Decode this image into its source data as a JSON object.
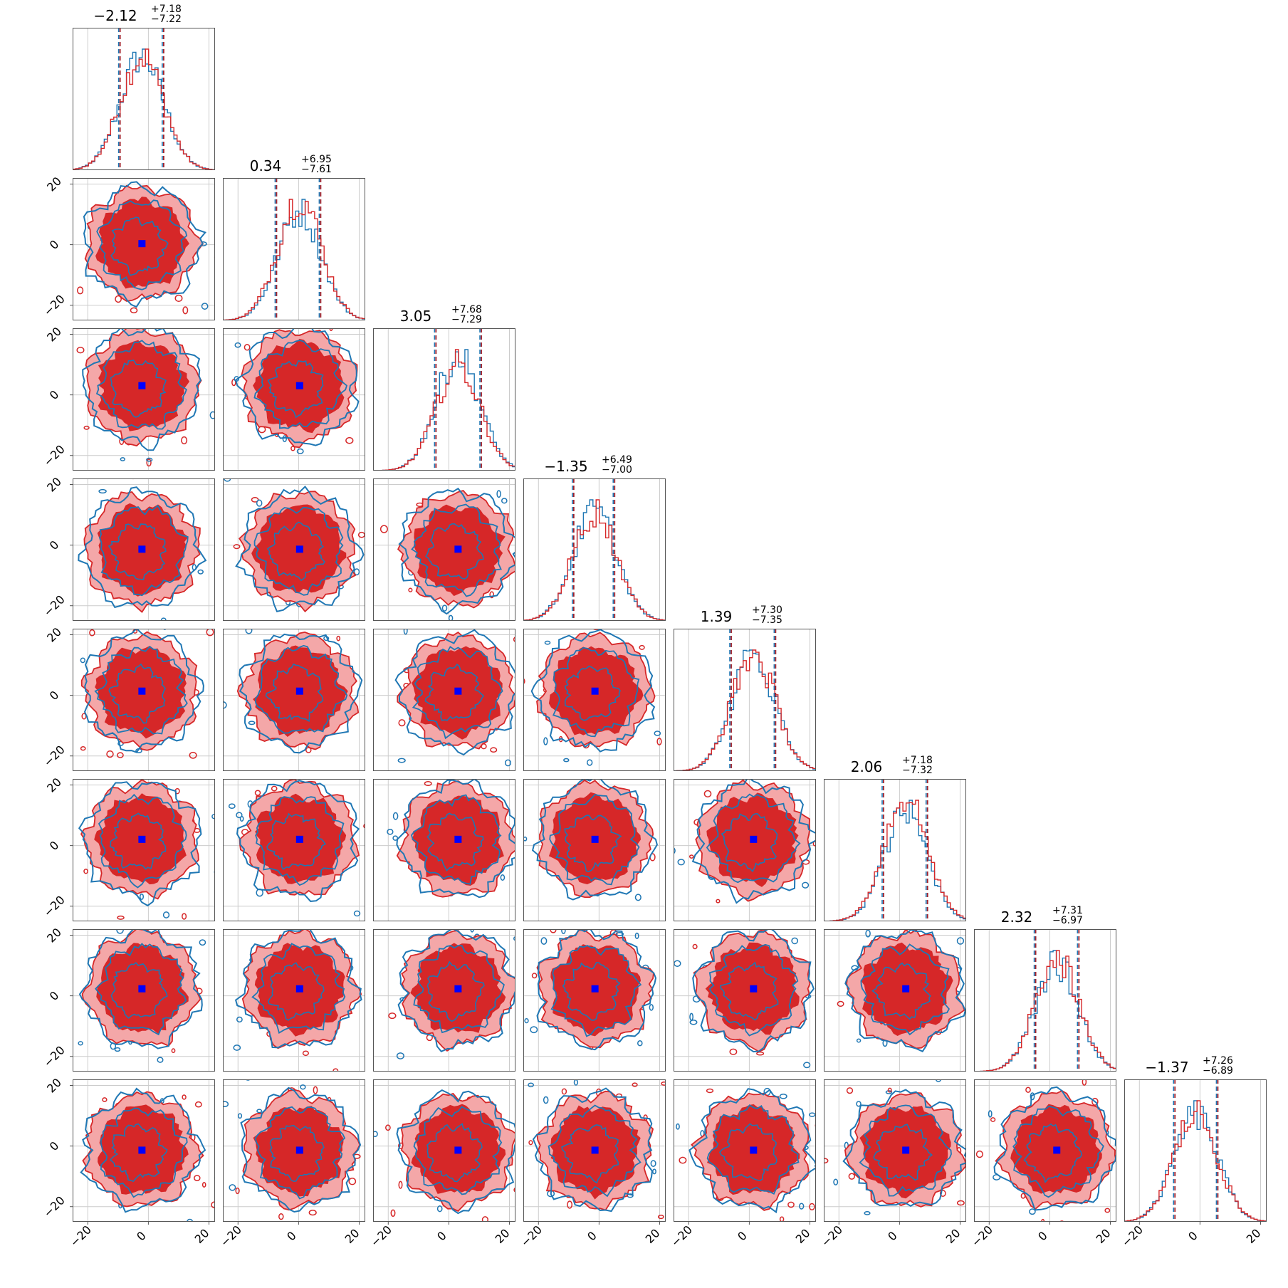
{
  "colors": {
    "red": "#d62728",
    "blue": "#1f77b4",
    "fill_outer": "#f4a7a8",
    "fill_inner": "#d62728",
    "grid": "#cccccc",
    "frame": "#555555",
    "truth": "#0000ff",
    "quantile": "#a0202a"
  },
  "chart_data": {
    "type": "corner",
    "n_params": 8,
    "axis_range": [
      -25,
      22
    ],
    "ticks": [
      -20,
      0,
      20
    ],
    "tick_labels": [
      "−20",
      "0",
      "20"
    ],
    "grid": true,
    "titles": [
      {
        "median": "−2.12",
        "plus": "+7.18",
        "minus": "−7.22"
      },
      {
        "median": "0.34",
        "plus": "+6.95",
        "minus": "−7.61"
      },
      {
        "median": "3.05",
        "plus": "+7.68",
        "minus": "−7.29"
      },
      {
        "median": "−1.35",
        "plus": "+6.49",
        "minus": "−7.00"
      },
      {
        "median": "1.39",
        "plus": "+7.30",
        "minus": "−7.35"
      },
      {
        "median": "2.06",
        "plus": "+7.18",
        "minus": "−7.32"
      },
      {
        "median": "2.32",
        "plus": "+7.31",
        "minus": "−6.97"
      },
      {
        "median": "−1.37",
        "plus": "+7.26",
        "minus": "−6.89"
      }
    ],
    "medians": [
      -2.12,
      0.34,
      3.05,
      -1.35,
      1.39,
      2.06,
      2.32,
      -1.37
    ],
    "q_low": [
      -9.34,
      -7.27,
      -4.24,
      -8.35,
      -5.96,
      -5.26,
      -4.65,
      -8.26
    ],
    "q_high": [
      5.06,
      7.29,
      10.73,
      5.14,
      8.69,
      9.24,
      9.63,
      5.89
    ],
    "series": [
      {
        "color_key": "blue"
      },
      {
        "color_key": "red"
      }
    ]
  }
}
